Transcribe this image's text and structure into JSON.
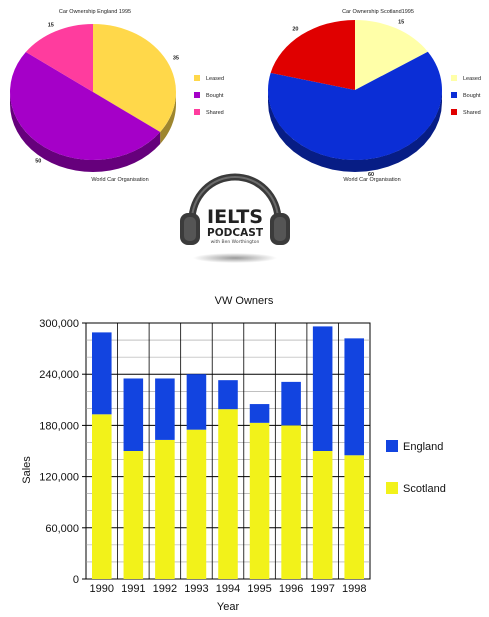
{
  "logo": {
    "main": "IELTS",
    "sub": "PODCAST",
    "byline": "with Ben Worthington"
  },
  "chart_data": [
    {
      "type": "pie",
      "title": "Car Ownership England 1995",
      "source": "World Car Organisation",
      "slices": [
        {
          "name": "Leased",
          "value": 35,
          "color": "#ffd84a"
        },
        {
          "name": "Bought",
          "value": 50,
          "color": "#a500c8"
        },
        {
          "name": "Shared",
          "value": 15,
          "color": "#ff3c9e"
        }
      ],
      "legend_position": "right"
    },
    {
      "type": "pie",
      "title": "Car Ownership Scotland1995",
      "source": "World Car Organisation",
      "slices": [
        {
          "name": "Leased",
          "value": 15,
          "color": "#ffffa8"
        },
        {
          "name": "Bought",
          "value": 60,
          "color": "#0b2ed6"
        },
        {
          "name": "Shared",
          "value": 20,
          "color": "#e00000"
        }
      ],
      "legend_position": "right"
    },
    {
      "type": "bar",
      "stacked": true,
      "title": "VW Owners",
      "xlabel": "Year",
      "ylabel": "Sales",
      "categories": [
        "1990",
        "1991",
        "1992",
        "1993",
        "1994",
        "1995",
        "1996",
        "1997",
        "1998"
      ],
      "series": [
        {
          "name": "Scotland",
          "color": "#f2f21a",
          "values": [
            193000,
            150000,
            163000,
            175000,
            199000,
            183000,
            180000,
            150000,
            145000
          ]
        },
        {
          "name": "England",
          "color": "#1244e0",
          "values": [
            96000,
            85000,
            72000,
            65000,
            34000,
            22000,
            51000,
            146000,
            137000
          ]
        }
      ],
      "ylim": [
        0,
        300000
      ],
      "yticks": [
        "0",
        "60,000",
        "120,000",
        "180,000",
        "240,000",
        "300,000"
      ],
      "legend_position": "right",
      "grid": true
    }
  ]
}
